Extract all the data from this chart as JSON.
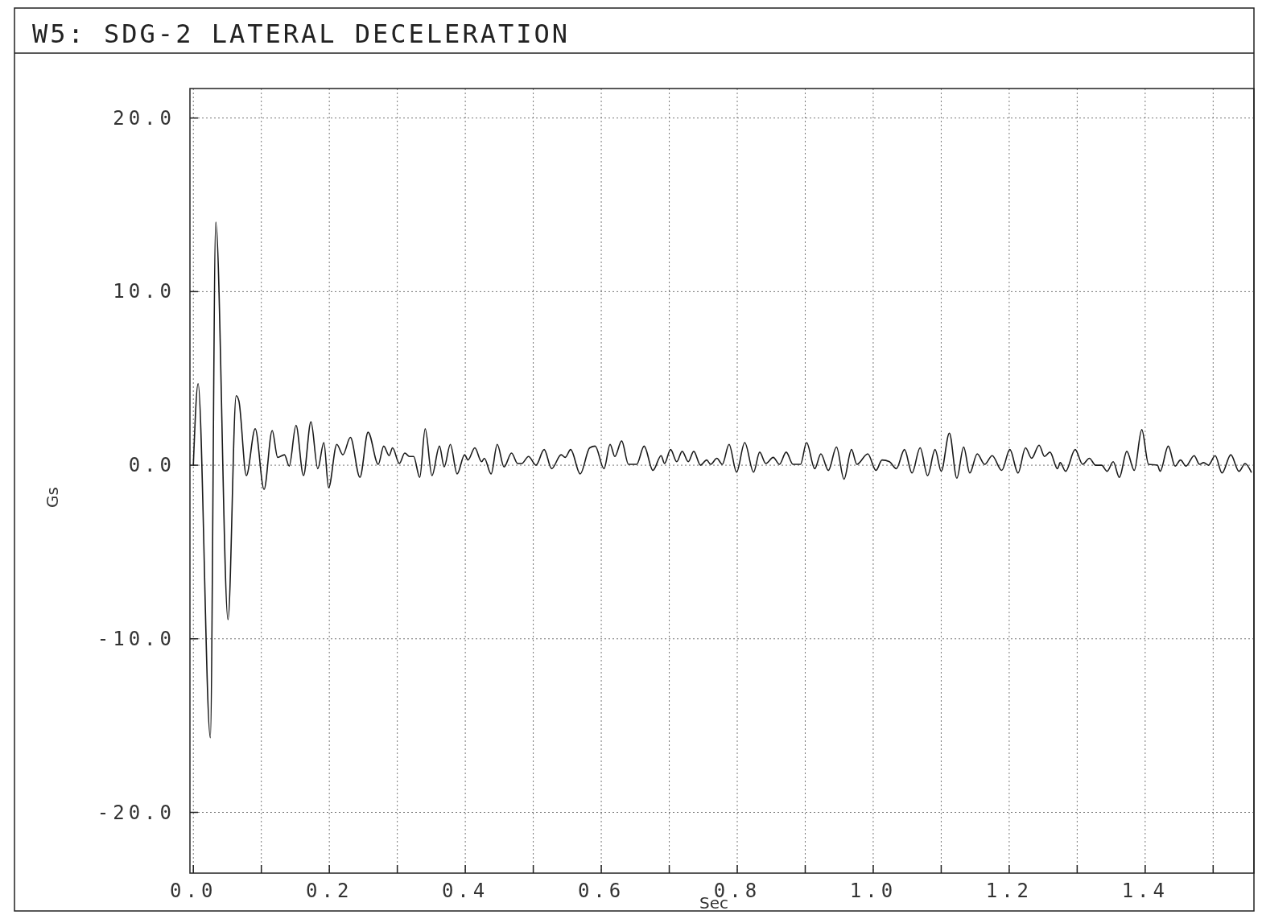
{
  "chart_data": {
    "type": "line",
    "title": "W5: SDG-2 LATERAL DECELERATION",
    "xlabel": "Sec",
    "ylabel": "Gs",
    "xlim": [
      -0.005,
      1.56
    ],
    "ylim": [
      -23.5,
      21.7
    ],
    "xticks": [
      {
        "value": 0,
        "label": "0.0"
      },
      {
        "value": 0.1,
        "label": null
      },
      {
        "value": 0.2,
        "label": "0.2"
      },
      {
        "value": 0.3,
        "label": null
      },
      {
        "value": 0.4,
        "label": "0.4"
      },
      {
        "value": 0.5,
        "label": null
      },
      {
        "value": 0.6,
        "label": "0.6"
      },
      {
        "value": 0.7,
        "label": null
      },
      {
        "value": 0.8,
        "label": "0.8"
      },
      {
        "value": 0.9,
        "label": null
      },
      {
        "value": 1.0,
        "label": "1.0"
      },
      {
        "value": 1.1,
        "label": null
      },
      {
        "value": 1.2,
        "label": "1.2"
      },
      {
        "value": 1.3,
        "label": null
      },
      {
        "value": 1.4,
        "label": "1.4"
      },
      {
        "value": 1.5,
        "label": null
      }
    ],
    "yticks": [
      {
        "value": -20,
        "label": "-20.0"
      },
      {
        "value": -10,
        "label": "-10.0"
      },
      {
        "value": 0,
        "label": "0.0"
      },
      {
        "value": 10,
        "label": "10.0"
      },
      {
        "value": 20,
        "label": "20.0"
      }
    ],
    "grid": true,
    "marker": "none",
    "line_style": "solid",
    "series": [
      {
        "color": "#1a1a1a",
        "x": [
          0,
          0.007,
          0.025,
          0.033,
          0.051,
          0.063,
          0.067,
          0.078,
          0.091,
          0.104,
          0.116,
          0.124,
          0.134,
          0.141,
          0.151,
          0.162,
          0.173,
          0.183,
          0.192,
          0.199,
          0.211,
          0.22,
          0.231,
          0.245,
          0.257,
          0.272,
          0.28,
          0.288,
          0.293,
          0.303,
          0.311,
          0.318,
          0.324,
          0.333,
          0.341,
          0.351,
          0.362,
          0.369,
          0.378,
          0.388,
          0.399,
          0.404,
          0.414,
          0.424,
          0.428,
          0.438,
          0.447,
          0.457,
          0.468,
          0.477,
          0.483,
          0.493,
          0.504,
          0.516,
          0.527,
          0.541,
          0.547,
          0.555,
          0.569,
          0.583,
          0.591,
          0.604,
          0.613,
          0.62,
          0.63,
          0.64,
          0.652,
          0.663,
          0.676,
          0.688,
          0.693,
          0.702,
          0.711,
          0.719,
          0.728,
          0.736,
          0.746,
          0.755,
          0.761,
          0.77,
          0.778,
          0.788,
          0.799,
          0.811,
          0.824,
          0.833,
          0.842,
          0.853,
          0.862,
          0.872,
          0.882,
          0.893,
          0.902,
          0.914,
          0.923,
          0.934,
          0.946,
          0.957,
          0.968,
          0.976,
          0.992,
          1.004,
          1.013,
          1.024,
          1.034,
          1.046,
          1.057,
          1.069,
          1.08,
          1.091,
          1.1,
          1.112,
          1.123,
          1.133,
          1.142,
          1.153,
          1.164,
          1.175,
          1.189,
          1.201,
          1.213,
          1.224,
          1.233,
          1.244,
          1.252,
          1.26,
          1.271,
          1.275,
          1.283,
          1.297,
          1.308,
          1.318,
          1.327,
          1.336,
          1.344,
          1.353,
          1.362,
          1.373,
          1.384,
          1.395,
          1.405,
          1.418,
          1.422,
          1.434,
          1.444,
          1.452,
          1.46,
          1.472,
          1.48,
          1.486,
          1.493,
          1.503,
          1.513,
          1.526,
          1.538,
          1.547,
          1.556
        ],
        "values": [
          0,
          4.7,
          -15.7,
          14.0,
          -8.9,
          4.0,
          3.7,
          -0.6,
          2.1,
          -1.4,
          2.0,
          0.45,
          0.6,
          -0.05,
          2.3,
          -0.6,
          2.5,
          -0.2,
          1.3,
          -1.3,
          1.2,
          0.6,
          1.6,
          -0.7,
          1.9,
          0.05,
          1.1,
          0.55,
          1.0,
          0.1,
          0.7,
          0.5,
          0.5,
          -0.7,
          2.1,
          -0.6,
          1.1,
          -0.1,
          1.2,
          -0.5,
          0.6,
          0.3,
          1.0,
          0.2,
          0.4,
          -0.5,
          1.2,
          -0.1,
          0.7,
          0.1,
          0.1,
          0.5,
          0,
          0.9,
          -0.2,
          0.6,
          0.45,
          0.9,
          -0.5,
          1.0,
          1.1,
          -0.2,
          1.2,
          0.5,
          1.4,
          0.05,
          0.05,
          1.1,
          -0.3,
          0.55,
          0.1,
          0.9,
          0.2,
          0.8,
          0.2,
          0.8,
          0,
          0.3,
          0.05,
          0.4,
          0.05,
          1.2,
          -0.4,
          1.3,
          -0.4,
          0.75,
          0.1,
          0.45,
          0.05,
          0.75,
          0.05,
          0.05,
          1.3,
          -0.2,
          0.65,
          -0.3,
          1.05,
          -0.8,
          0.9,
          0.05,
          0.65,
          -0.3,
          0.3,
          0.2,
          -0.2,
          0.9,
          -0.45,
          1.0,
          -0.6,
          0.9,
          -0.35,
          1.85,
          -0.75,
          1.05,
          -0.45,
          0.65,
          0.05,
          0.55,
          -0.3,
          0.9,
          -0.45,
          1.0,
          0.4,
          1.15,
          0.5,
          0.75,
          -0.2,
          0.15,
          -0.35,
          0.9,
          0.05,
          0.4,
          0,
          0,
          -0.35,
          0.2,
          -0.7,
          0.8,
          -0.3,
          2.05,
          0.05,
          0,
          -0.35,
          1.1,
          -0.05,
          0.3,
          -0.05,
          0.55,
          0.05,
          0.15,
          0,
          0.55,
          -0.45,
          0.6,
          -0.35,
          0.1,
          -0.4
        ]
      }
    ]
  }
}
